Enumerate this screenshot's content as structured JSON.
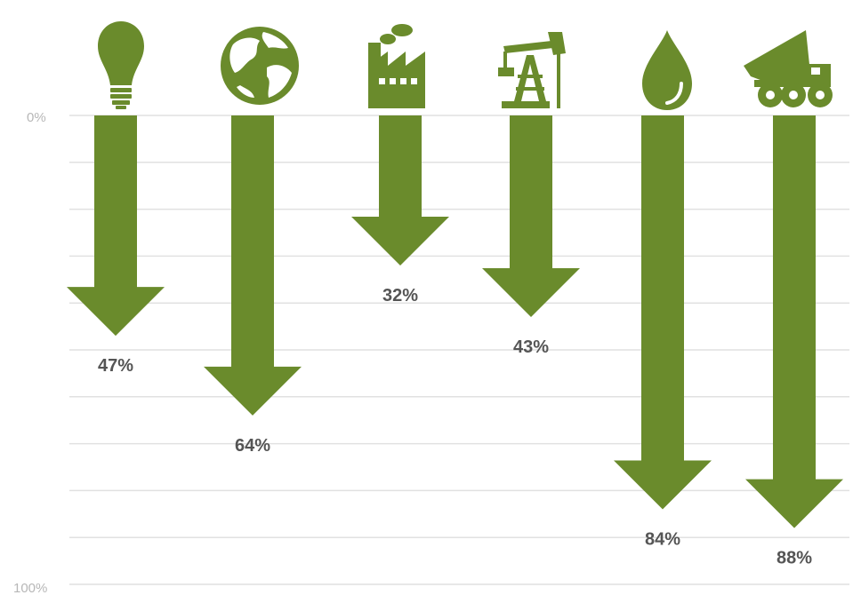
{
  "chart_data": {
    "type": "bar",
    "orientation": "downward-arrows",
    "categories": [
      "light-bulb-icon",
      "globe-icon",
      "factory-icon",
      "oil-pump-icon",
      "oil-drop-icon",
      "mining-truck-icon"
    ],
    "values": [
      47,
      64,
      32,
      43,
      84,
      88
    ],
    "value_labels": [
      "47%",
      "64%",
      "32%",
      "43%",
      "84%",
      "88%"
    ],
    "title": "",
    "xlabel": "",
    "ylabel": "",
    "ylim": [
      0,
      100
    ],
    "y_tick_labels": {
      "top": "0%",
      "bottom": "100%"
    },
    "grid": true,
    "legend": "none"
  },
  "colors": {
    "arrow": "#6a8b2c",
    "icon": "#6a8b2c",
    "grid": "#e1e1e1",
    "tick_text": "#b7b7b7",
    "value_text": "#555555"
  }
}
